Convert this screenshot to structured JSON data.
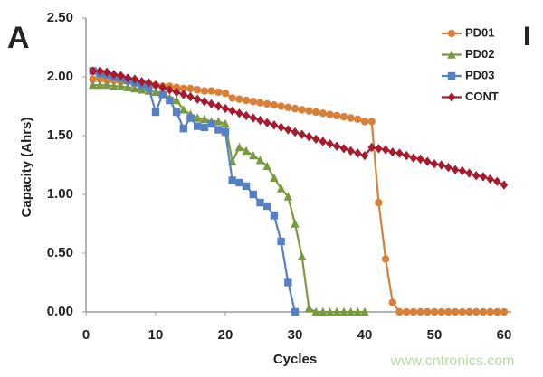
{
  "chart_data": {
    "type": "line",
    "panel_label": "A",
    "corner_label": "I",
    "x_label": "Cycles",
    "y_label": "Capacity (Ahrs)",
    "watermark": "www.cntronics.com",
    "x": [
      1,
      2,
      3,
      4,
      5,
      6,
      7,
      8,
      9,
      10,
      11,
      12,
      13,
      14,
      15,
      16,
      17,
      18,
      19,
      20,
      21,
      22,
      23,
      24,
      25,
      26,
      27,
      28,
      29,
      30,
      31,
      32,
      33,
      34,
      35,
      36,
      37,
      38,
      39,
      40,
      41,
      42,
      43,
      44,
      45,
      46,
      47,
      48,
      49,
      50,
      51,
      52,
      53,
      54,
      55,
      56,
      57,
      58,
      59,
      60
    ],
    "xlim": [
      0,
      60
    ],
    "xticks": [
      0,
      10,
      20,
      30,
      40,
      50,
      60
    ],
    "ylim": [
      0,
      2.5
    ],
    "yticks": [
      {
        "value": 0,
        "label": "0.00"
      },
      {
        "value": 0.5,
        "label": "0.50"
      },
      {
        "value": 1,
        "label": "1.00"
      },
      {
        "value": 1.5,
        "label": "1.50"
      },
      {
        "value": 2,
        "label": "2.00"
      },
      {
        "value": 2.5,
        "label": "2.50"
      }
    ],
    "grid": false,
    "legend": "upper right",
    "series": [
      {
        "name": "PD01",
        "color": "#d8803a",
        "marker": "circle",
        "values": [
          1.98,
          1.98,
          1.97,
          1.97,
          1.96,
          1.96,
          1.95,
          1.94,
          1.94,
          1.93,
          1.92,
          1.92,
          1.91,
          1.9,
          1.9,
          1.89,
          1.88,
          1.88,
          1.87,
          1.86,
          1.82,
          1.81,
          1.8,
          1.79,
          1.78,
          1.77,
          1.76,
          1.75,
          1.74,
          1.73,
          1.72,
          1.71,
          1.7,
          1.69,
          1.68,
          1.67,
          1.66,
          1.65,
          1.64,
          1.62,
          1.62,
          0.93,
          0.45,
          0.08,
          0,
          0,
          0,
          0,
          0,
          0,
          0,
          0,
          0,
          0,
          0,
          0,
          0,
          0,
          0,
          0
        ]
      },
      {
        "name": "PD02",
        "color": "#7a9a42",
        "marker": "triangle",
        "values": [
          1.93,
          1.93,
          1.93,
          1.92,
          1.92,
          1.91,
          1.9,
          1.89,
          1.88,
          1.87,
          1.86,
          1.82,
          1.8,
          1.72,
          1.68,
          1.65,
          1.64,
          1.62,
          1.62,
          1.6,
          1.28,
          1.4,
          1.37,
          1.33,
          1.29,
          1.24,
          1.14,
          1.05,
          0.98,
          0.75,
          0.47,
          0.03,
          0,
          0,
          0,
          0,
          0,
          0,
          0,
          0,
          null,
          null,
          null,
          null,
          null,
          null,
          null,
          null,
          null,
          null,
          null,
          null,
          null,
          null,
          null,
          null,
          null,
          null,
          null,
          null
        ]
      },
      {
        "name": "PD03",
        "color": "#5580c4",
        "marker": "square",
        "values": [
          2.05,
          2.03,
          2.02,
          2.0,
          1.99,
          1.97,
          1.95,
          1.93,
          1.91,
          1.7,
          1.85,
          1.8,
          1.7,
          1.56,
          1.65,
          1.58,
          1.57,
          1.6,
          1.55,
          1.53,
          1.12,
          1.1,
          1.07,
          1.0,
          0.93,
          0.9,
          0.82,
          0.6,
          0.25,
          0,
          null,
          null,
          null,
          null,
          null,
          null,
          null,
          null,
          null,
          null,
          null,
          null,
          null,
          null,
          null,
          null,
          null,
          null,
          null,
          null,
          null,
          null,
          null,
          null,
          null,
          null,
          null,
          null,
          null,
          null
        ]
      },
      {
        "name": "CONT",
        "color": "#a61b2e",
        "marker": "diamond",
        "values": [
          2.05,
          2.05,
          2.04,
          2.02,
          2.01,
          1.99,
          1.98,
          1.96,
          1.95,
          1.93,
          1.91,
          1.89,
          1.87,
          1.85,
          1.83,
          1.81,
          1.79,
          1.77,
          1.75,
          1.73,
          1.71,
          1.69,
          1.67,
          1.65,
          1.63,
          1.61,
          1.59,
          1.57,
          1.55,
          1.53,
          1.51,
          1.49,
          1.47,
          1.45,
          1.43,
          1.41,
          1.39,
          1.37,
          1.35,
          1.33,
          1.4,
          1.39,
          1.38,
          1.36,
          1.35,
          1.33,
          1.31,
          1.3,
          1.28,
          1.26,
          1.25,
          1.23,
          1.21,
          1.2,
          1.18,
          1.16,
          1.15,
          1.13,
          1.11,
          1.08
        ]
      }
    ]
  }
}
